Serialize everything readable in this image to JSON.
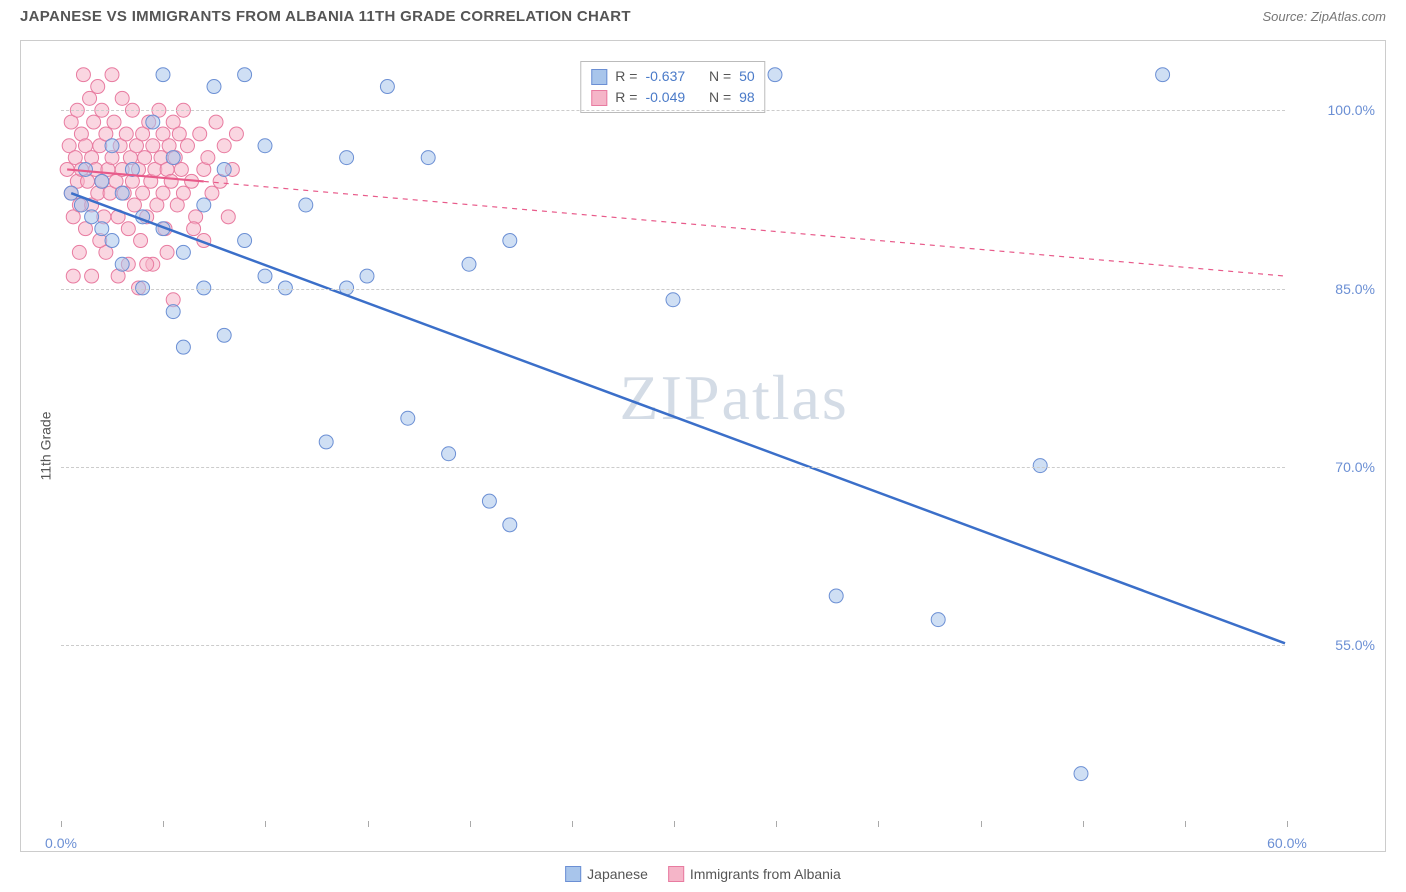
{
  "title": "JAPANESE VS IMMIGRANTS FROM ALBANIA 11TH GRADE CORRELATION CHART",
  "source": "Source: ZipAtlas.com",
  "watermark": "ZIPatlas",
  "chart": {
    "type": "scatter",
    "ylabel": "11th Grade",
    "xlim": [
      0,
      60
    ],
    "ylim": [
      40,
      105
    ],
    "xtick_marks": [
      0,
      5,
      10,
      15,
      20,
      25,
      30,
      35,
      40,
      45,
      50,
      55,
      60
    ],
    "xtick_labels": [
      {
        "pos": 0,
        "label": "0.0%"
      },
      {
        "pos": 60,
        "label": "60.0%"
      }
    ],
    "ytick_labels": [
      {
        "pos": 55,
        "label": "55.0%"
      },
      {
        "pos": 70,
        "label": "70.0%"
      },
      {
        "pos": 85,
        "label": "85.0%"
      },
      {
        "pos": 100,
        "label": "100.0%"
      }
    ],
    "gridlines_y": [
      55,
      70,
      85,
      100
    ],
    "background_color": "#ffffff",
    "grid_color": "#cccccc",
    "series": [
      {
        "name": "Japanese",
        "marker_color": "#a8c5eb",
        "marker_stroke": "#6b8fd4",
        "line_color": "#3b6fc9",
        "line_style": "solid",
        "R": "-0.637",
        "N": "50",
        "regression": {
          "x1": 0.5,
          "y1": 93,
          "x2": 60,
          "y2": 55
        },
        "points": [
          [
            0.5,
            93
          ],
          [
            1,
            92
          ],
          [
            1.2,
            95
          ],
          [
            1.5,
            91
          ],
          [
            2,
            94
          ],
          [
            2,
            90
          ],
          [
            2.5,
            97
          ],
          [
            2.5,
            89
          ],
          [
            3,
            93
          ],
          [
            3,
            87
          ],
          [
            3.5,
            95
          ],
          [
            4,
            91
          ],
          [
            4,
            85
          ],
          [
            4.5,
            99
          ],
          [
            5,
            103
          ],
          [
            5,
            90
          ],
          [
            5.5,
            96
          ],
          [
            5.5,
            83
          ],
          [
            6,
            88
          ],
          [
            6,
            80
          ],
          [
            7,
            92
          ],
          [
            7,
            85
          ],
          [
            7.5,
            102
          ],
          [
            8,
            95
          ],
          [
            8,
            81
          ],
          [
            9,
            103
          ],
          [
            9,
            89
          ],
          [
            10,
            86
          ],
          [
            10,
            97
          ],
          [
            11,
            85
          ],
          [
            12,
            92
          ],
          [
            13,
            72
          ],
          [
            14,
            96
          ],
          [
            14,
            85
          ],
          [
            15,
            86
          ],
          [
            16,
            102
          ],
          [
            17,
            74
          ],
          [
            18,
            96
          ],
          [
            19,
            71
          ],
          [
            20,
            87
          ],
          [
            21,
            67
          ],
          [
            22,
            65
          ],
          [
            22,
            89
          ],
          [
            30,
            84
          ],
          [
            35,
            103
          ],
          [
            38,
            59
          ],
          [
            43,
            57
          ],
          [
            48,
            70
          ],
          [
            50,
            44
          ],
          [
            54,
            103
          ]
        ]
      },
      {
        "name": "Immigrants from Albania",
        "marker_color": "#f5b5c8",
        "marker_stroke": "#e87ba0",
        "line_color": "#e85a8a",
        "line_style": "dashed",
        "R": "-0.049",
        "N": "98",
        "regression": {
          "x1": 0.3,
          "y1": 95,
          "x2": 60,
          "y2": 86
        },
        "points": [
          [
            0.3,
            95
          ],
          [
            0.4,
            97
          ],
          [
            0.5,
            93
          ],
          [
            0.5,
            99
          ],
          [
            0.6,
            91
          ],
          [
            0.7,
            96
          ],
          [
            0.8,
            100
          ],
          [
            0.8,
            94
          ],
          [
            0.9,
            92
          ],
          [
            1,
            98
          ],
          [
            1,
            95
          ],
          [
            1.1,
            103
          ],
          [
            1.2,
            90
          ],
          [
            1.2,
            97
          ],
          [
            1.3,
            94
          ],
          [
            1.4,
            101
          ],
          [
            1.5,
            96
          ],
          [
            1.5,
            92
          ],
          [
            1.6,
            99
          ],
          [
            1.7,
            95
          ],
          [
            1.8,
            93
          ],
          [
            1.8,
            102
          ],
          [
            1.9,
            97
          ],
          [
            2,
            94
          ],
          [
            2,
            100
          ],
          [
            2.1,
            91
          ],
          [
            2.2,
            98
          ],
          [
            2.3,
            95
          ],
          [
            2.4,
            93
          ],
          [
            2.5,
            103
          ],
          [
            2.5,
            96
          ],
          [
            2.6,
            99
          ],
          [
            2.7,
            94
          ],
          [
            2.8,
            91
          ],
          [
            2.9,
            97
          ],
          [
            3,
            95
          ],
          [
            3,
            101
          ],
          [
            3.1,
            93
          ],
          [
            3.2,
            98
          ],
          [
            3.3,
            90
          ],
          [
            3.4,
            96
          ],
          [
            3.5,
            94
          ],
          [
            3.5,
            100
          ],
          [
            3.6,
            92
          ],
          [
            3.7,
            97
          ],
          [
            3.8,
            95
          ],
          [
            3.9,
            89
          ],
          [
            4,
            98
          ],
          [
            4,
            93
          ],
          [
            4.1,
            96
          ],
          [
            4.2,
            91
          ],
          [
            4.3,
            99
          ],
          [
            4.4,
            94
          ],
          [
            4.5,
            97
          ],
          [
            4.5,
            87
          ],
          [
            4.6,
            95
          ],
          [
            4.7,
            92
          ],
          [
            4.8,
            100
          ],
          [
            4.9,
            96
          ],
          [
            5,
            93
          ],
          [
            5,
            98
          ],
          [
            5.1,
            90
          ],
          [
            5.2,
            95
          ],
          [
            5.3,
            97
          ],
          [
            5.4,
            94
          ],
          [
            5.5,
            99
          ],
          [
            5.5,
            84
          ],
          [
            5.6,
            96
          ],
          [
            5.7,
            92
          ],
          [
            5.8,
            98
          ],
          [
            5.9,
            95
          ],
          [
            6,
            93
          ],
          [
            6,
            100
          ],
          [
            6.2,
            97
          ],
          [
            6.4,
            94
          ],
          [
            6.6,
            91
          ],
          [
            6.8,
            98
          ],
          [
            7,
            95
          ],
          [
            7,
            89
          ],
          [
            7.2,
            96
          ],
          [
            7.4,
            93
          ],
          [
            7.6,
            99
          ],
          [
            7.8,
            94
          ],
          [
            8,
            97
          ],
          [
            8.2,
            91
          ],
          [
            8.4,
            95
          ],
          [
            8.6,
            98
          ],
          [
            1.5,
            86
          ],
          [
            2.2,
            88
          ],
          [
            3.8,
            85
          ],
          [
            0.6,
            86
          ],
          [
            1.9,
            89
          ],
          [
            4.2,
            87
          ],
          [
            2.8,
            86
          ],
          [
            0.9,
            88
          ],
          [
            5.2,
            88
          ],
          [
            3.3,
            87
          ],
          [
            6.5,
            90
          ]
        ]
      }
    ],
    "marker_radius": 7,
    "marker_opacity": 0.55,
    "line_width_solid": 2.5,
    "line_width_dashed": 1.2
  },
  "bottom_legend": [
    {
      "label": "Japanese",
      "fill": "#a8c5eb",
      "stroke": "#6b8fd4"
    },
    {
      "label": "Immigrants from Albania",
      "fill": "#f5b5c8",
      "stroke": "#e87ba0"
    }
  ]
}
